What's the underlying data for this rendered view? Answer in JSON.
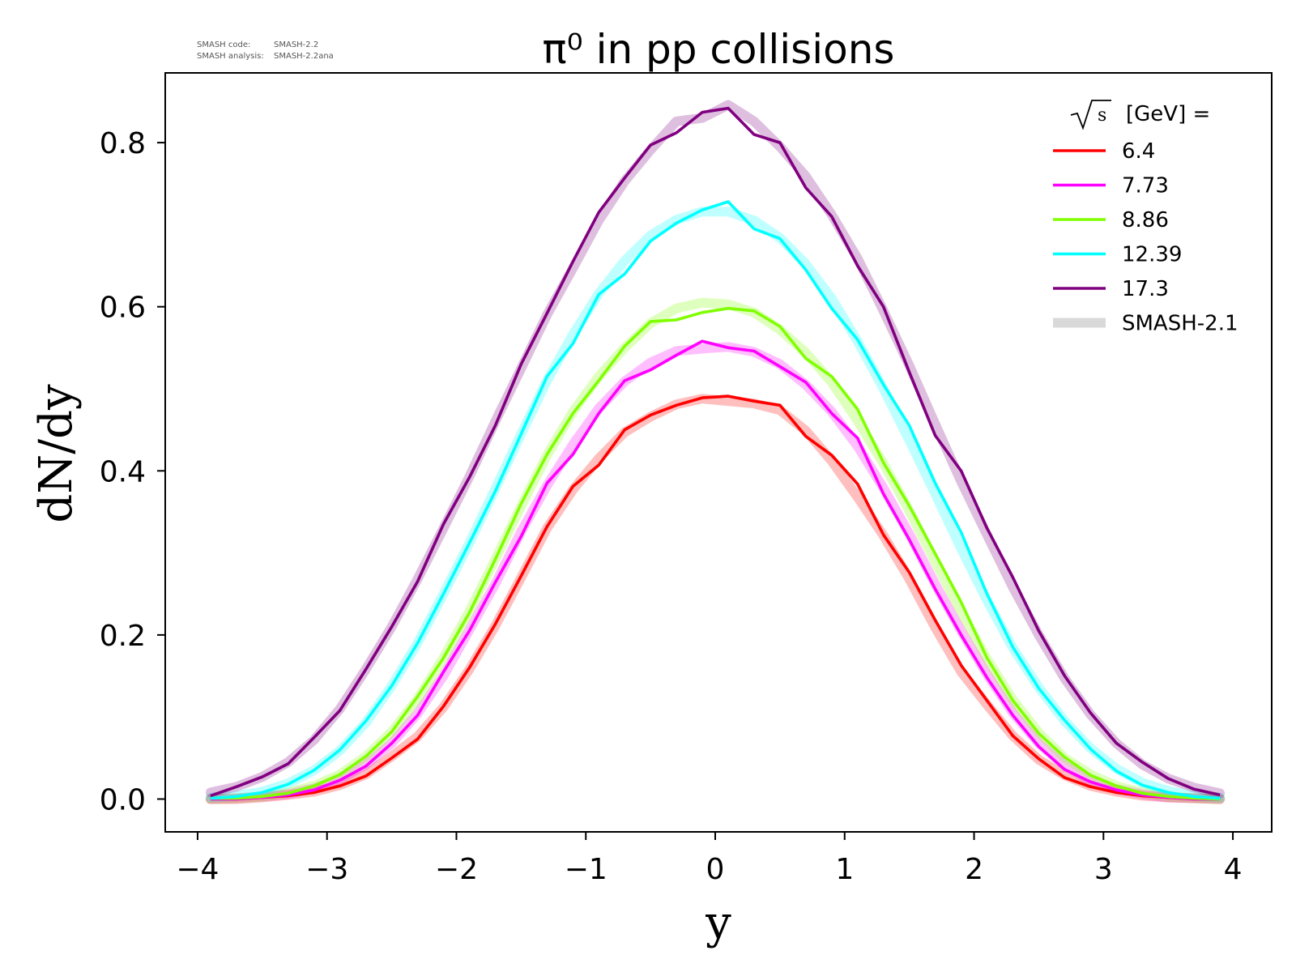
{
  "meta": {
    "code_label": "SMASH code:",
    "code_value": "SMASH-2.2",
    "analysis_label": "SMASH analysis:",
    "analysis_value": "SMASH-2.2ana"
  },
  "chart_data": {
    "type": "line",
    "title": "π⁰ in pp collisions",
    "xlabel": "y",
    "ylabel": "dN/dy",
    "xlim": [
      -4.25,
      4.3
    ],
    "ylim": [
      -0.04,
      0.885
    ],
    "xticks": [
      -4,
      -3,
      -2,
      -1,
      0,
      1,
      2,
      3,
      4
    ],
    "xtick_labels": [
      "−4",
      "−3",
      "−2",
      "−1",
      "0",
      "1",
      "2",
      "3",
      "4"
    ],
    "yticks": [
      0.0,
      0.2,
      0.4,
      0.6,
      0.8
    ],
    "ytick_labels": [
      "0.0",
      "0.2",
      "0.4",
      "0.6",
      "0.8"
    ],
    "grid": false,
    "legend": {
      "placement": "top-right",
      "title_sqrt_symbol": "√s",
      "title_suffix": "[GeV] =",
      "reference_label": "SMASH-2.1",
      "reference_color": "#d9d9d9"
    },
    "x": [
      -3.9,
      -3.7,
      -3.5,
      -3.3,
      -3.1,
      -2.9,
      -2.7,
      -2.5,
      -2.3,
      -2.1,
      -1.9,
      -1.7,
      -1.5,
      -1.3,
      -1.1,
      -0.9,
      -0.7,
      -0.5,
      -0.3,
      -0.1,
      0.1,
      0.3,
      0.5,
      0.7,
      0.9,
      1.1,
      1.3,
      1.5,
      1.7,
      1.9,
      2.1,
      2.3,
      2.5,
      2.7,
      2.9,
      3.1,
      3.3,
      3.5,
      3.7,
      3.9
    ],
    "series": [
      {
        "name": "6.4",
        "color": "#ff0000",
        "values": [
          0.0,
          0.0,
          0.002,
          0.004,
          0.008,
          0.016,
          0.028,
          0.05,
          0.073,
          0.113,
          0.16,
          0.213,
          0.272,
          0.332,
          0.381,
          0.407,
          0.45,
          0.468,
          0.48,
          0.489,
          0.491,
          0.485,
          0.48,
          0.442,
          0.419,
          0.384,
          0.322,
          0.276,
          0.218,
          0.163,
          0.12,
          0.077,
          0.049,
          0.026,
          0.015,
          0.008,
          0.004,
          0.002,
          0.0,
          0.0
        ],
        "ref": [
          0.0,
          0.0,
          0.002,
          0.005,
          0.009,
          0.017,
          0.03,
          0.052,
          0.076,
          0.112,
          0.158,
          0.211,
          0.27,
          0.33,
          0.377,
          0.415,
          0.447,
          0.466,
          0.481,
          0.488,
          0.485,
          0.482,
          0.474,
          0.449,
          0.412,
          0.368,
          0.321,
          0.268,
          0.209,
          0.155,
          0.115,
          0.077,
          0.048,
          0.029,
          0.016,
          0.009,
          0.004,
          0.002,
          0.001,
          0.0
        ]
      },
      {
        "name": "7.73",
        "color": "#ff00ff",
        "values": [
          0.0,
          0.0,
          0.002,
          0.005,
          0.011,
          0.023,
          0.04,
          0.068,
          0.102,
          0.155,
          0.205,
          0.264,
          0.32,
          0.385,
          0.42,
          0.47,
          0.51,
          0.523,
          0.541,
          0.558,
          0.55,
          0.546,
          0.527,
          0.508,
          0.47,
          0.44,
          0.372,
          0.316,
          0.256,
          0.2,
          0.148,
          0.102,
          0.064,
          0.036,
          0.021,
          0.011,
          0.005,
          0.002,
          0.0,
          0.0
        ],
        "ref": [
          0.0,
          0.001,
          0.003,
          0.006,
          0.013,
          0.024,
          0.042,
          0.068,
          0.104,
          0.15,
          0.206,
          0.262,
          0.326,
          0.382,
          0.432,
          0.476,
          0.509,
          0.532,
          0.546,
          0.549,
          0.551,
          0.545,
          0.53,
          0.505,
          0.472,
          0.43,
          0.379,
          0.323,
          0.262,
          0.205,
          0.152,
          0.105,
          0.068,
          0.041,
          0.022,
          0.012,
          0.006,
          0.002,
          0.001,
          0.0
        ]
      },
      {
        "name": "8.86",
        "color": "#80ff00",
        "values": [
          0.001,
          0.001,
          0.003,
          0.007,
          0.016,
          0.03,
          0.052,
          0.082,
          0.125,
          0.172,
          0.227,
          0.292,
          0.36,
          0.42,
          0.47,
          0.51,
          0.552,
          0.582,
          0.584,
          0.593,
          0.598,
          0.595,
          0.576,
          0.537,
          0.515,
          0.475,
          0.41,
          0.357,
          0.299,
          0.24,
          0.172,
          0.12,
          0.08,
          0.051,
          0.029,
          0.016,
          0.007,
          0.003,
          0.001,
          0.0
        ],
        "ref": [
          0.0,
          0.001,
          0.003,
          0.008,
          0.016,
          0.03,
          0.052,
          0.082,
          0.122,
          0.172,
          0.229,
          0.292,
          0.357,
          0.419,
          0.472,
          0.515,
          0.55,
          0.58,
          0.598,
          0.605,
          0.603,
          0.593,
          0.572,
          0.544,
          0.508,
          0.461,
          0.409,
          0.351,
          0.289,
          0.228,
          0.171,
          0.121,
          0.081,
          0.05,
          0.03,
          0.016,
          0.008,
          0.003,
          0.001,
          0.0
        ]
      },
      {
        "name": "12.39",
        "color": "#00ffff",
        "values": [
          0.001,
          0.003,
          0.008,
          0.018,
          0.035,
          0.06,
          0.095,
          0.138,
          0.19,
          0.25,
          0.312,
          0.375,
          0.445,
          0.515,
          0.555,
          0.615,
          0.64,
          0.68,
          0.702,
          0.718,
          0.728,
          0.695,
          0.683,
          0.645,
          0.598,
          0.56,
          0.505,
          0.455,
          0.385,
          0.325,
          0.25,
          0.185,
          0.135,
          0.096,
          0.061,
          0.034,
          0.017,
          0.008,
          0.003,
          0.001
        ],
        "ref": [
          0.002,
          0.004,
          0.009,
          0.019,
          0.035,
          0.059,
          0.093,
          0.138,
          0.19,
          0.25,
          0.312,
          0.378,
          0.445,
          0.51,
          0.566,
          0.616,
          0.656,
          0.687,
          0.706,
          0.716,
          0.716,
          0.705,
          0.684,
          0.652,
          0.61,
          0.558,
          0.5,
          0.437,
          0.372,
          0.305,
          0.242,
          0.184,
          0.136,
          0.095,
          0.062,
          0.037,
          0.02,
          0.01,
          0.004,
          0.002
        ]
      },
      {
        "name": "17.3",
        "color": "#800080",
        "values": [
          0.004,
          0.015,
          0.027,
          0.043,
          0.075,
          0.108,
          0.158,
          0.21,
          0.265,
          0.335,
          0.392,
          0.455,
          0.53,
          0.592,
          0.655,
          0.715,
          0.757,
          0.797,
          0.812,
          0.837,
          0.842,
          0.81,
          0.8,
          0.745,
          0.71,
          0.65,
          0.6,
          0.52,
          0.443,
          0.4,
          0.33,
          0.27,
          0.205,
          0.15,
          0.105,
          0.068,
          0.045,
          0.025,
          0.012,
          0.005
        ],
        "ref": [
          0.008,
          0.015,
          0.027,
          0.045,
          0.072,
          0.11,
          0.158,
          0.21,
          0.268,
          0.33,
          0.393,
          0.46,
          0.525,
          0.59,
          0.647,
          0.705,
          0.753,
          0.791,
          0.826,
          0.83,
          0.846,
          0.826,
          0.795,
          0.759,
          0.712,
          0.659,
          0.595,
          0.528,
          0.457,
          0.387,
          0.322,
          0.258,
          0.2,
          0.147,
          0.103,
          0.068,
          0.042,
          0.025,
          0.014,
          0.007
        ]
      }
    ]
  }
}
